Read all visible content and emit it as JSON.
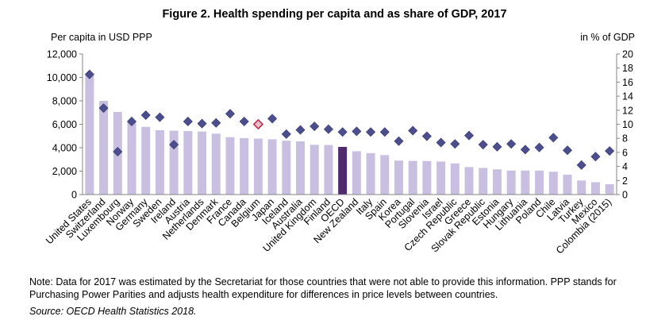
{
  "chart_data": {
    "type": "bar",
    "title": "Figure 2. Health spending per capita and as share of GDP, 2017",
    "ylabel": "Per capita in USD PPP",
    "y2label": "in % of GDP",
    "ylim": [
      0,
      12000
    ],
    "y2lim": [
      0,
      20
    ],
    "yticks": [
      "0",
      "2,000",
      "4,000",
      "6,000",
      "8,000",
      "10,000",
      "12,000"
    ],
    "y2ticks": [
      "0",
      "2",
      "4",
      "6",
      "8",
      "10",
      "12",
      "14",
      "16",
      "18",
      "20"
    ],
    "categories": [
      "United States",
      "Switzerland",
      "Luxembourg",
      "Norway",
      "Germany",
      "Sweden",
      "Ireland",
      "Austria",
      "Netherlands",
      "Denmark",
      "France",
      "Canada",
      "Belgium",
      "Japan",
      "Iceland",
      "Australia",
      "United Kingdom",
      "Finland",
      "OECD",
      "New Zealand",
      "Italy",
      "Spain",
      "Korea",
      "Portugal",
      "Slovenia",
      "Israel",
      "Czech Republic",
      "Greece",
      "Slovak Republic",
      "Estonia",
      "Hungary",
      "Lithuania",
      "Poland",
      "Chile",
      "Latvia",
      "Turkey",
      "Mexico",
      "Colombia (2015)"
    ],
    "series": [
      {
        "name": "Per capita in USD PPP",
        "axis": "left",
        "kind": "bar",
        "color": "#c9bfe0",
        "highlight": {
          "OECD": "#4e2a6e"
        },
        "values": [
          10200,
          8000,
          7050,
          6180,
          5780,
          5500,
          5450,
          5420,
          5380,
          5200,
          4900,
          4820,
          4780,
          4720,
          4600,
          4540,
          4250,
          4230,
          4070,
          3700,
          3540,
          3370,
          2900,
          2870,
          2860,
          2820,
          2660,
          2350,
          2270,
          2150,
          2050,
          2050,
          2050,
          1950,
          1700,
          1200,
          1050,
          880
        ]
      },
      {
        "name": "in % of GDP",
        "axis": "right",
        "kind": "marker",
        "color": "#4b4d8c",
        "highlight": {
          "Belgium": "#c03050"
        },
        "values": [
          17.1,
          12.3,
          6.1,
          10.4,
          11.3,
          11.0,
          7.1,
          10.4,
          10.1,
          10.2,
          11.5,
          10.4,
          10.0,
          10.8,
          8.6,
          9.2,
          9.7,
          9.3,
          8.9,
          9.0,
          8.9,
          8.9,
          7.6,
          9.1,
          8.3,
          7.4,
          7.2,
          8.4,
          7.1,
          6.8,
          7.2,
          6.4,
          6.7,
          8.1,
          6.3,
          4.2,
          5.4,
          6.2
        ]
      }
    ]
  },
  "note": "Note: Data for 2017 was estimated by the Secretariat for those countries that were not able to provide this information. PPP stands for Purchasing Power Parities and adjusts health expenditure for differences in price levels between countries.",
  "source": "Source: OECD Health Statistics 2018."
}
